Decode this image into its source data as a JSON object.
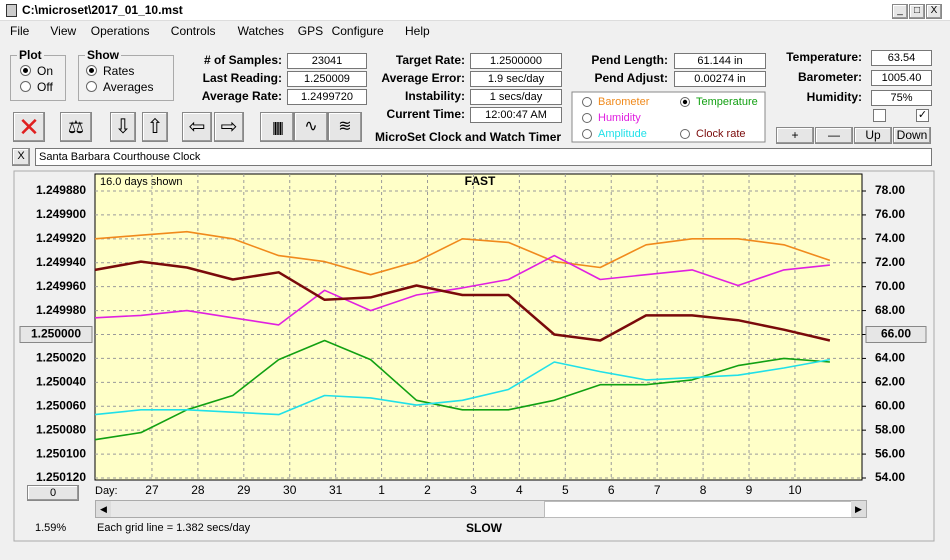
{
  "window": {
    "title": "C:\\microset\\2017_01_10.mst"
  },
  "menu": [
    "File",
    "View",
    "Operations",
    "Controls",
    "Watches",
    "GPS",
    "Configure",
    "Help"
  ],
  "plot_group": {
    "title": "Plot",
    "options": [
      "On",
      "Off"
    ],
    "selected": 0
  },
  "show_group": {
    "title": "Show",
    "options": [
      "Rates",
      "Averages"
    ],
    "selected": 0
  },
  "stats": [
    {
      "label": "# of Samples:",
      "value": "23041"
    },
    {
      "label": "Last Reading:",
      "value": "1.250009"
    },
    {
      "label": "Average Rate:",
      "value": "1.2499720"
    }
  ],
  "rates": [
    {
      "label": "Target Rate:",
      "value": "1.2500000"
    },
    {
      "label": "Average Error:",
      "value": "1.9 sec/day"
    },
    {
      "label": "Instability:",
      "value": "1 secs/day"
    },
    {
      "label": "Current Time:",
      "value": "12:00:47 AM"
    }
  ],
  "pendulum": [
    {
      "label": "Pend Length:",
      "value": "61.144 in"
    },
    {
      "label": "Pend Adjust:",
      "value": "0.00274 in"
    }
  ],
  "environment": [
    {
      "label": "Temperature:",
      "value": "63.54"
    },
    {
      "label": "Barometer:",
      "value": "1005.40"
    },
    {
      "label": "Humidity:",
      "value": "75%"
    }
  ],
  "app_title": "MicroSet Clock and Watch Timer",
  "buttons": [
    "+",
    "—",
    "Up",
    "Down"
  ],
  "watch_name": "Santa Barbara Courthouse Clock",
  "footer": {
    "scroll_value": "0",
    "percent": "1.59%",
    "grid_note": "Each grid line = 1.382 secs/day"
  },
  "chart_data": {
    "type": "line",
    "subtitle": "16.0 days shown",
    "top_label": "FAST",
    "bottom_label": "SLOW",
    "x_label": "Day:",
    "legend_selected": "Temperature",
    "x": [
      0,
      1,
      2,
      3,
      4,
      5,
      6,
      7,
      8,
      9,
      10,
      11,
      12,
      13,
      14,
      15,
      16
    ],
    "xlim": [
      0,
      16.7
    ],
    "xticks": [
      {
        "value": 1.24,
        "label": "27"
      },
      {
        "value": 2.24,
        "label": "28"
      },
      {
        "value": 3.24,
        "label": "29"
      },
      {
        "value": 4.24,
        "label": "30"
      },
      {
        "value": 5.24,
        "label": "31"
      },
      {
        "value": 6.24,
        "label": "1"
      },
      {
        "value": 7.24,
        "label": "2"
      },
      {
        "value": 8.24,
        "label": "3"
      },
      {
        "value": 9.24,
        "label": "4"
      },
      {
        "value": 10.24,
        "label": "5"
      },
      {
        "value": 11.24,
        "label": "6"
      },
      {
        "value": 12.24,
        "label": "7"
      },
      {
        "value": 13.24,
        "label": "8"
      },
      {
        "value": 14.24,
        "label": "9"
      },
      {
        "value": 15.24,
        "label": "10"
      }
    ],
    "ylim": [
      1.25012,
      1.24988
    ],
    "yticks": [
      {
        "value": 1.24988,
        "label": "1.249880"
      },
      {
        "value": 1.2499,
        "label": "1.249900"
      },
      {
        "value": 1.24992,
        "label": "1.249920"
      },
      {
        "value": 1.24994,
        "label": "1.249940"
      },
      {
        "value": 1.24996,
        "label": "1.249960"
      },
      {
        "value": 1.24998,
        "label": "1.249980"
      },
      {
        "value": 1.25,
        "label": "1.250000"
      },
      {
        "value": 1.25002,
        "label": "1.250020"
      },
      {
        "value": 1.25004,
        "label": "1.250040"
      },
      {
        "value": 1.25006,
        "label": "1.250060"
      },
      {
        "value": 1.25008,
        "label": "1.250080"
      },
      {
        "value": 1.2501,
        "label": "1.250100"
      },
      {
        "value": 1.25012,
        "label": "1.250120"
      }
    ],
    "y_highlight": 1.25,
    "y2lim": [
      54,
      78
    ],
    "y2ticks": [
      {
        "value": 78,
        "label": "78.00"
      },
      {
        "value": 76,
        "label": "76.00"
      },
      {
        "value": 74,
        "label": "74.00"
      },
      {
        "value": 72,
        "label": "72.00"
      },
      {
        "value": 70,
        "label": "70.00"
      },
      {
        "value": 68,
        "label": "68.00"
      },
      {
        "value": 66,
        "label": "66.00"
      },
      {
        "value": 64,
        "label": "64.00"
      },
      {
        "value": 62,
        "label": "62.00"
      },
      {
        "value": 60,
        "label": "60.00"
      },
      {
        "value": 58,
        "label": "58.00"
      },
      {
        "value": 56,
        "label": "56.00"
      },
      {
        "value": 54,
        "label": "54.00"
      }
    ],
    "y2_highlight": 66,
    "grid": true,
    "series": [
      {
        "name": "Barometer",
        "color": "#f08a1c",
        "axis": "y2",
        "values": [
          74.0,
          74.3,
          74.6,
          74.0,
          72.6,
          72.1,
          71.0,
          72.1,
          74.0,
          73.7,
          72.1,
          71.6,
          73.5,
          74.0,
          74.0,
          73.5,
          72.2
        ]
      },
      {
        "name": "Temperature",
        "color": "#12a012",
        "axis": "y2",
        "values": [
          57.2,
          57.8,
          59.7,
          60.9,
          63.9,
          65.5,
          63.9,
          60.5,
          59.7,
          59.7,
          60.5,
          61.8,
          61.8,
          62.2,
          63.4,
          64.0,
          63.7
        ]
      },
      {
        "name": "Humidity",
        "color": "#e020e0",
        "axis": "y2",
        "values": [
          67.4,
          67.6,
          68.0,
          67.4,
          66.8,
          69.7,
          68.0,
          69.3,
          69.9,
          70.6,
          72.6,
          70.6,
          71.0,
          71.4,
          70.1,
          71.4,
          71.8
        ]
      },
      {
        "name": "Amplitude",
        "color": "#20e0e8",
        "axis": "y2",
        "values": [
          59.3,
          59.7,
          59.7,
          59.5,
          59.3,
          60.9,
          60.7,
          60.1,
          60.5,
          61.4,
          63.7,
          62.9,
          62.2,
          62.4,
          62.6,
          63.2,
          63.9
        ]
      },
      {
        "name": "Clock rate",
        "color": "#7a0a0a",
        "axis": "y",
        "values": [
          1.249946,
          1.249939,
          1.249944,
          1.249954,
          1.249948,
          1.249971,
          1.249969,
          1.249959,
          1.249967,
          1.249967,
          1.25,
          1.250005,
          1.249984,
          1.249984,
          1.249988,
          1.249996,
          1.250005
        ]
      }
    ]
  }
}
